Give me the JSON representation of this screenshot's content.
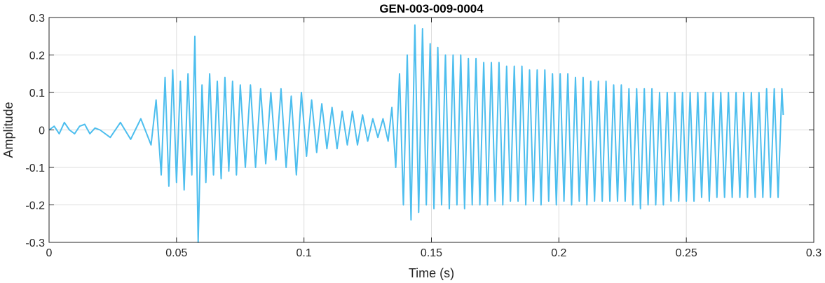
{
  "chart_data": {
    "type": "line",
    "title": "GEN-003-009-0004",
    "xlabel": "Time (s)",
    "ylabel": "Amplitude",
    "xlim": [
      0,
      0.3
    ],
    "ylim": [
      -0.3,
      0.3
    ],
    "xticks": [
      0,
      0.05,
      0.1,
      0.15,
      0.2,
      0.25,
      0.3
    ],
    "xtick_labels": [
      "0",
      "0.05",
      "0.1",
      "0.15",
      "0.2",
      "0.25",
      "0.3"
    ],
    "yticks": [
      -0.3,
      -0.2,
      -0.1,
      0,
      0.1,
      0.2,
      0.3
    ],
    "ytick_labels": [
      "-0.3",
      "-0.2",
      "-0.1",
      "0",
      "0.1",
      "0.2",
      "0.3"
    ],
    "grid": true,
    "color": "#4DBEEE",
    "series": [
      {
        "x": [
          0.0,
          0.002,
          0.004,
          0.006,
          0.008,
          0.01,
          0.012,
          0.014,
          0.016,
          0.018,
          0.02,
          0.024,
          0.028,
          0.032,
          0.036,
          0.04,
          0.042,
          0.044,
          0.0455,
          0.047,
          0.0485,
          0.05,
          0.0515,
          0.053,
          0.0545,
          0.056,
          0.0572,
          0.0585,
          0.06,
          0.0615,
          0.063,
          0.0645,
          0.066,
          0.0675,
          0.069,
          0.0705,
          0.072,
          0.0735,
          0.075,
          0.077,
          0.079,
          0.081,
          0.083,
          0.085,
          0.087,
          0.089,
          0.091,
          0.093,
          0.095,
          0.097,
          0.099,
          0.101,
          0.103,
          0.105,
          0.107,
          0.109,
          0.111,
          0.113,
          0.115,
          0.117,
          0.119,
          0.121,
          0.123,
          0.125,
          0.127,
          0.129,
          0.131,
          0.133,
          0.1345,
          0.136,
          0.1375,
          0.139,
          0.1405,
          0.142,
          0.1435,
          0.145,
          0.1465,
          0.148,
          0.1495,
          0.151,
          0.1525,
          0.154,
          0.1555,
          0.157,
          0.1585,
          0.16,
          0.1615,
          0.163,
          0.1645,
          0.166,
          0.1675,
          0.169,
          0.1705,
          0.172,
          0.1735,
          0.175,
          0.1765,
          0.178,
          0.1795,
          0.181,
          0.1825,
          0.184,
          0.1855,
          0.187,
          0.1885,
          0.19,
          0.1915,
          0.193,
          0.1945,
          0.196,
          0.1975,
          0.199,
          0.2005,
          0.202,
          0.2035,
          0.205,
          0.2065,
          0.208,
          0.2095,
          0.211,
          0.2125,
          0.214,
          0.2155,
          0.217,
          0.2185,
          0.22,
          0.2215,
          0.223,
          0.2245,
          0.226,
          0.2275,
          0.229,
          0.2305,
          0.232,
          0.2335,
          0.235,
          0.2365,
          0.238,
          0.2395,
          0.241,
          0.2425,
          0.244,
          0.2455,
          0.247,
          0.2485,
          0.25,
          0.2515,
          0.253,
          0.2545,
          0.256,
          0.2575,
          0.259,
          0.2605,
          0.262,
          0.2635,
          0.265,
          0.2665,
          0.268,
          0.2695,
          0.271,
          0.2725,
          0.274,
          0.2755,
          0.277,
          0.2785,
          0.28,
          0.2815,
          0.283,
          0.2845,
          0.286,
          0.2875,
          0.288
        ],
        "y": [
          0.0,
          0.01,
          -0.01,
          0.02,
          0.0,
          -0.01,
          0.01,
          0.015,
          -0.01,
          0.005,
          0.0,
          -0.02,
          0.02,
          -0.025,
          0.03,
          -0.04,
          0.08,
          -0.12,
          0.14,
          -0.15,
          0.16,
          -0.14,
          0.13,
          -0.16,
          0.15,
          -0.12,
          0.25,
          -0.3,
          0.12,
          -0.14,
          0.15,
          -0.12,
          0.13,
          -0.13,
          0.14,
          -0.11,
          0.13,
          -0.12,
          0.12,
          -0.1,
          0.12,
          -0.1,
          0.11,
          -0.09,
          0.1,
          -0.08,
          0.11,
          -0.1,
          0.09,
          -0.12,
          0.1,
          -0.07,
          0.08,
          -0.06,
          0.07,
          -0.05,
          0.06,
          -0.05,
          0.05,
          -0.04,
          0.05,
          -0.04,
          0.04,
          -0.03,
          0.03,
          -0.02,
          0.03,
          -0.03,
          0.06,
          -0.1,
          0.15,
          -0.2,
          0.2,
          -0.24,
          0.28,
          -0.22,
          0.27,
          -0.2,
          0.23,
          -0.21,
          0.22,
          -0.2,
          0.2,
          -0.21,
          0.2,
          -0.2,
          0.2,
          -0.21,
          0.19,
          -0.2,
          0.19,
          -0.2,
          0.18,
          -0.2,
          0.18,
          -0.19,
          0.18,
          -0.2,
          0.17,
          -0.19,
          0.17,
          -0.19,
          0.17,
          -0.2,
          0.16,
          -0.19,
          0.16,
          -0.2,
          0.16,
          -0.19,
          0.15,
          -0.2,
          0.15,
          -0.19,
          0.15,
          -0.2,
          0.14,
          -0.19,
          0.14,
          -0.2,
          0.13,
          -0.19,
          0.13,
          -0.19,
          0.13,
          -0.19,
          0.12,
          -0.19,
          0.12,
          -0.19,
          0.11,
          -0.2,
          0.11,
          -0.21,
          0.11,
          -0.2,
          0.11,
          -0.2,
          0.1,
          -0.2,
          0.1,
          -0.19,
          0.1,
          -0.19,
          0.1,
          -0.19,
          0.1,
          -0.19,
          0.1,
          -0.18,
          0.1,
          -0.19,
          0.1,
          -0.18,
          0.1,
          -0.18,
          0.1,
          -0.18,
          0.1,
          -0.18,
          0.1,
          -0.18,
          0.1,
          -0.18,
          0.1,
          -0.18,
          0.11,
          -0.18,
          0.11,
          -0.18,
          0.11,
          0.04
        ]
      }
    ]
  }
}
